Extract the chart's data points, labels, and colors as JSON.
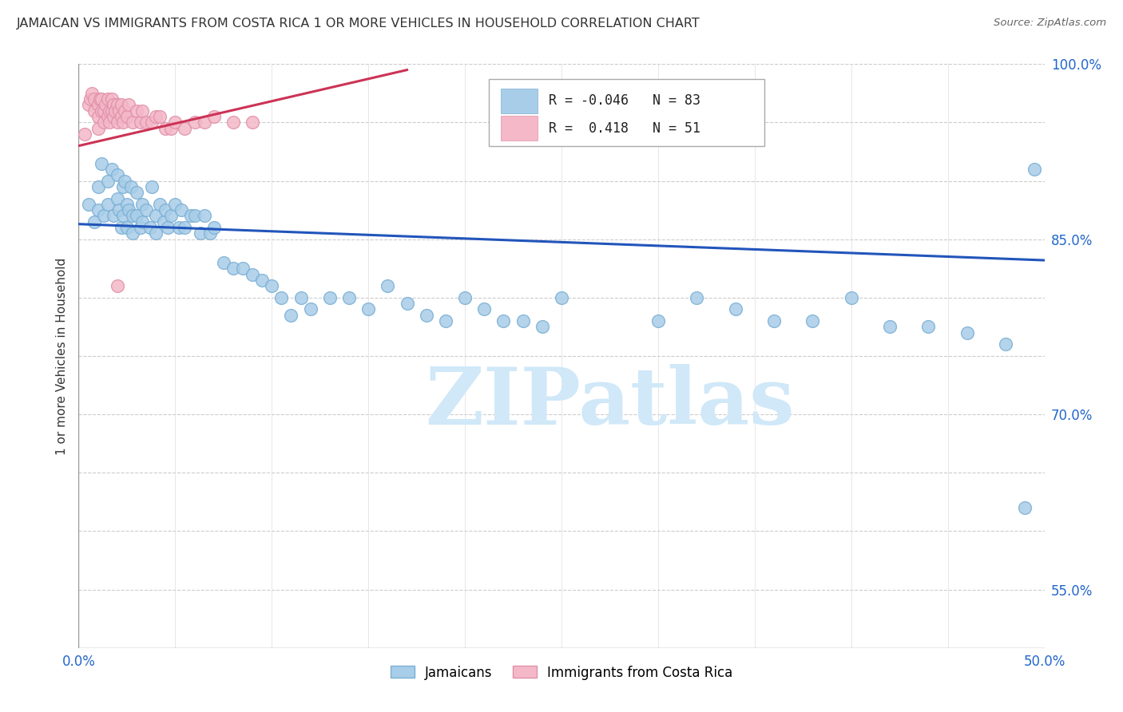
{
  "title": "JAMAICAN VS IMMIGRANTS FROM COSTA RICA 1 OR MORE VEHICLES IN HOUSEHOLD CORRELATION CHART",
  "source": "Source: ZipAtlas.com",
  "ylabel": "1 or more Vehicles in Household",
  "xlim": [
    0.0,
    0.5
  ],
  "ylim": [
    0.5,
    1.0
  ],
  "blue_color": "#A8CDE8",
  "blue_edge_color": "#7AAFD4",
  "pink_color": "#F4B8C8",
  "pink_edge_color": "#E090A8",
  "blue_line_color": "#2255BB",
  "pink_line_color": "#CC3355",
  "R_blue": -0.046,
  "N_blue": 83,
  "R_pink": 0.418,
  "N_pink": 51,
  "watermark": "ZIPatlas",
  "watermark_color": "#D0E8F8",
  "ytick_labels": {
    "1.00": "100.0%",
    "0.85": "85.0%",
    "0.70": "70.0%",
    "0.55": "55.0%"
  },
  "blue_x": [
    0.005,
    0.008,
    0.01,
    0.01,
    0.012,
    0.013,
    0.015,
    0.015,
    0.017,
    0.018,
    0.02,
    0.02,
    0.021,
    0.022,
    0.023,
    0.023,
    0.024,
    0.025,
    0.025,
    0.026,
    0.027,
    0.028,
    0.028,
    0.03,
    0.03,
    0.032,
    0.033,
    0.033,
    0.035,
    0.037,
    0.038,
    0.04,
    0.04,
    0.042,
    0.044,
    0.045,
    0.046,
    0.048,
    0.05,
    0.052,
    0.053,
    0.055,
    0.058,
    0.06,
    0.063,
    0.065,
    0.068,
    0.07,
    0.075,
    0.08,
    0.085,
    0.09,
    0.095,
    0.1,
    0.105,
    0.11,
    0.115,
    0.12,
    0.13,
    0.14,
    0.15,
    0.16,
    0.17,
    0.18,
    0.19,
    0.2,
    0.21,
    0.22,
    0.23,
    0.24,
    0.25,
    0.3,
    0.32,
    0.34,
    0.36,
    0.38,
    0.4,
    0.42,
    0.44,
    0.46,
    0.48,
    0.49,
    0.495
  ],
  "blue_y": [
    0.88,
    0.865,
    0.895,
    0.875,
    0.915,
    0.87,
    0.9,
    0.88,
    0.91,
    0.87,
    0.905,
    0.885,
    0.875,
    0.86,
    0.895,
    0.87,
    0.9,
    0.88,
    0.86,
    0.875,
    0.895,
    0.87,
    0.855,
    0.89,
    0.87,
    0.86,
    0.88,
    0.865,
    0.875,
    0.86,
    0.895,
    0.87,
    0.855,
    0.88,
    0.865,
    0.875,
    0.86,
    0.87,
    0.88,
    0.86,
    0.875,
    0.86,
    0.87,
    0.87,
    0.855,
    0.87,
    0.855,
    0.86,
    0.83,
    0.825,
    0.825,
    0.82,
    0.815,
    0.81,
    0.8,
    0.785,
    0.8,
    0.79,
    0.8,
    0.8,
    0.79,
    0.81,
    0.795,
    0.785,
    0.78,
    0.8,
    0.79,
    0.78,
    0.78,
    0.775,
    0.8,
    0.78,
    0.8,
    0.79,
    0.78,
    0.78,
    0.8,
    0.775,
    0.775,
    0.77,
    0.76,
    0.62,
    0.91
  ],
  "pink_x": [
    0.003,
    0.005,
    0.006,
    0.007,
    0.008,
    0.008,
    0.01,
    0.01,
    0.01,
    0.011,
    0.012,
    0.012,
    0.013,
    0.013,
    0.014,
    0.015,
    0.015,
    0.016,
    0.016,
    0.017,
    0.017,
    0.018,
    0.018,
    0.019,
    0.02,
    0.02,
    0.021,
    0.022,
    0.022,
    0.023,
    0.024,
    0.025,
    0.026,
    0.028,
    0.03,
    0.032,
    0.033,
    0.035,
    0.038,
    0.04,
    0.042,
    0.045,
    0.048,
    0.05,
    0.055,
    0.06,
    0.065,
    0.07,
    0.08,
    0.09,
    0.02
  ],
  "pink_y": [
    0.94,
    0.965,
    0.97,
    0.975,
    0.97,
    0.96,
    0.965,
    0.955,
    0.945,
    0.97,
    0.96,
    0.97,
    0.95,
    0.96,
    0.965,
    0.955,
    0.97,
    0.96,
    0.95,
    0.96,
    0.97,
    0.955,
    0.965,
    0.96,
    0.95,
    0.965,
    0.96,
    0.955,
    0.965,
    0.95,
    0.96,
    0.955,
    0.965,
    0.95,
    0.96,
    0.95,
    0.96,
    0.95,
    0.95,
    0.955,
    0.955,
    0.945,
    0.945,
    0.95,
    0.945,
    0.95,
    0.95,
    0.955,
    0.95,
    0.95,
    0.81
  ],
  "blue_line_x": [
    0.0,
    0.5
  ],
  "blue_line_y": [
    0.863,
    0.832
  ],
  "pink_line_x": [
    0.0,
    0.17
  ],
  "pink_line_y": [
    0.93,
    0.995
  ]
}
